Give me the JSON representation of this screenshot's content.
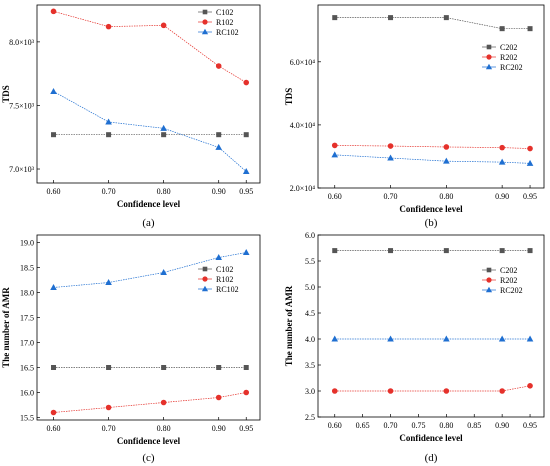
{
  "chart_data": [
    {
      "caption": "(a)",
      "type": "line",
      "xlabel": "Confidence level",
      "ylabel": "TDS",
      "x": [
        0.6,
        0.7,
        0.8,
        0.9,
        0.95
      ],
      "xticks": [
        "0.60",
        "0.70",
        "0.80",
        "0.90",
        "0.95"
      ],
      "ylim": [
        6.89,
        8.29
      ],
      "yticks": [
        {
          "v": 7.0,
          "label": "7.0×10³"
        },
        {
          "v": 7.5,
          "label": "7.5×10³"
        },
        {
          "v": 8.0,
          "label": "8.0×10³"
        }
      ],
      "legend_position": "top-right",
      "series": [
        {
          "name": "C102",
          "marker": "square",
          "color": "#555555",
          "values": [
            7.27,
            7.27,
            7.27,
            7.27,
            7.27
          ]
        },
        {
          "name": "R102",
          "marker": "circle",
          "color": "#e5312b",
          "values": [
            8.24,
            8.12,
            8.13,
            7.81,
            7.68
          ]
        },
        {
          "name": "RC102",
          "marker": "triangle",
          "color": "#1f6fd1",
          "values": [
            7.61,
            7.37,
            7.32,
            7.17,
            6.98
          ]
        }
      ]
    },
    {
      "caption": "(b)",
      "type": "line",
      "xlabel": "Confidence level",
      "ylabel": "TDS",
      "x": [
        0.6,
        0.7,
        0.8,
        0.9,
        0.95
      ],
      "xticks": [
        "0.60",
        "0.70",
        "0.80",
        "0.90",
        "0.95"
      ],
      "ylim": [
        2.0,
        7.8
      ],
      "yticks": [
        {
          "v": 2.0,
          "label": "2.0×10⁴"
        },
        {
          "v": 4.0,
          "label": "4.0×10⁴"
        },
        {
          "v": 6.0,
          "label": "6.0×10⁴"
        }
      ],
      "legend_position": "right",
      "series": [
        {
          "name": "C202",
          "marker": "square",
          "color": "#555555",
          "values": [
            7.4,
            7.4,
            7.4,
            7.05,
            7.05
          ]
        },
        {
          "name": "R202",
          "marker": "circle",
          "color": "#e5312b",
          "values": [
            3.35,
            3.33,
            3.3,
            3.28,
            3.25
          ]
        },
        {
          "name": "RC202",
          "marker": "triangle",
          "color": "#1f6fd1",
          "values": [
            3.05,
            2.95,
            2.85,
            2.82,
            2.78
          ]
        }
      ]
    },
    {
      "caption": "(c)",
      "type": "line",
      "xlabel": "Confidence level",
      "ylabel": "The number of AMR",
      "x": [
        0.6,
        0.7,
        0.8,
        0.9,
        0.95
      ],
      "xticks": [
        "0.60",
        "0.70",
        "0.80",
        "0.90",
        "0.95"
      ],
      "ylim": [
        15.45,
        19.15
      ],
      "yticks": [
        {
          "v": 15.5,
          "label": "15.5"
        },
        {
          "v": 16.0,
          "label": "16.0"
        },
        {
          "v": 16.5,
          "label": "16.5"
        },
        {
          "v": 17.0,
          "label": "17.0"
        },
        {
          "v": 17.5,
          "label": "17.5"
        },
        {
          "v": 18.0,
          "label": "18.0"
        },
        {
          "v": 18.5,
          "label": "18.5"
        },
        {
          "v": 19.0,
          "label": "19.0"
        }
      ],
      "legend_position": "right",
      "series": [
        {
          "name": "C102",
          "marker": "square",
          "color": "#555555",
          "values": [
            16.5,
            16.5,
            16.5,
            16.5,
            16.5
          ]
        },
        {
          "name": "R102",
          "marker": "circle",
          "color": "#e5312b",
          "values": [
            15.6,
            15.7,
            15.8,
            15.9,
            16.0
          ]
        },
        {
          "name": "RC102",
          "marker": "triangle",
          "color": "#1f6fd1",
          "values": [
            18.1,
            18.2,
            18.4,
            18.7,
            18.8
          ]
        }
      ]
    },
    {
      "caption": "(d)",
      "type": "line",
      "xlabel": "Confidence level",
      "ylabel": "The number of AMR",
      "x": [
        0.6,
        0.7,
        0.8,
        0.9,
        0.95
      ],
      "xticks": [
        "0.60",
        "0.65",
        "0.70",
        "0.75",
        "0.80",
        "0.85",
        "0.90",
        "0.95"
      ],
      "xtick_values": [
        0.6,
        0.65,
        0.7,
        0.75,
        0.8,
        0.85,
        0.9,
        0.95
      ],
      "ylim": [
        2.5,
        6.0
      ],
      "yticks": [
        {
          "v": 2.5,
          "label": "2.5"
        },
        {
          "v": 3.0,
          "label": "3.0"
        },
        {
          "v": 3.5,
          "label": "3.5"
        },
        {
          "v": 4.0,
          "label": "4.0"
        },
        {
          "v": 4.5,
          "label": "4.5"
        },
        {
          "v": 5.0,
          "label": "5.0"
        },
        {
          "v": 5.5,
          "label": "5.5"
        },
        {
          "v": 6.0,
          "label": "6.0"
        }
      ],
      "legend_position": "top-right",
      "series": [
        {
          "name": "C202",
          "marker": "square",
          "color": "#555555",
          "values": [
            5.7,
            5.7,
            5.7,
            5.7,
            5.7
          ]
        },
        {
          "name": "R202",
          "marker": "circle",
          "color": "#e5312b",
          "values": [
            3.0,
            3.0,
            3.0,
            3.0,
            3.1
          ]
        },
        {
          "name": "RC202",
          "marker": "triangle",
          "color": "#1f6fd1",
          "values": [
            4.0,
            4.0,
            4.0,
            4.0,
            4.0
          ]
        }
      ]
    }
  ]
}
